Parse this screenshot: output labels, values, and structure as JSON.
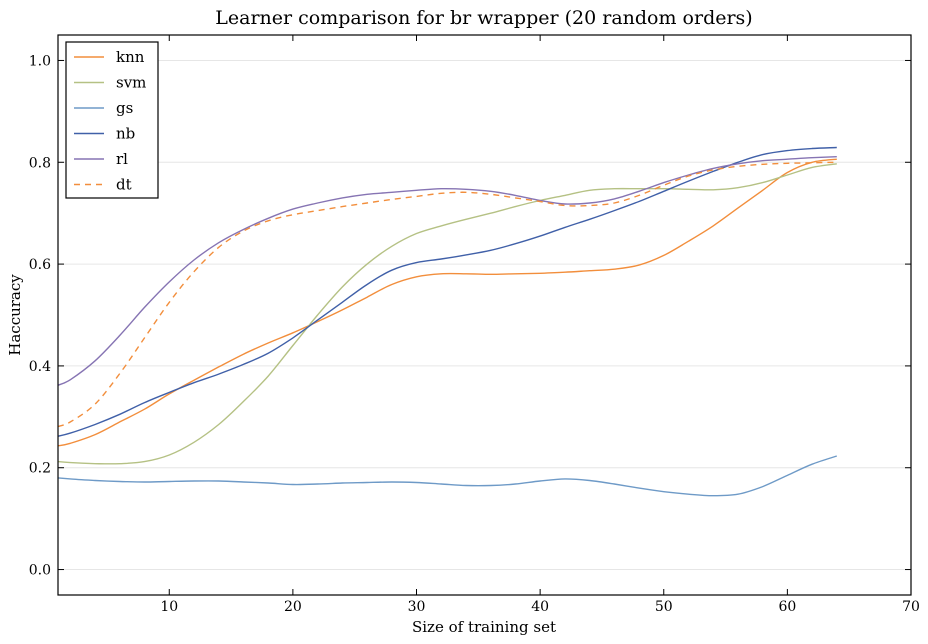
{
  "chart_data": {
    "type": "line",
    "title": "Learner comparison for br wrapper (20 random orders)",
    "xlabel": "Size of training set",
    "ylabel": "Haccuracy",
    "xlim": [
      1,
      70
    ],
    "ylim": [
      -0.05,
      1.05
    ],
    "xticks": [
      10,
      20,
      30,
      40,
      50,
      60,
      70
    ],
    "yticks": [
      0.0,
      0.2,
      0.4,
      0.6,
      0.8,
      1.0
    ],
    "grid": "horizontal",
    "legend_position": "top-left",
    "x": [
      1,
      2,
      4,
      6,
      8,
      10,
      12,
      14,
      16,
      18,
      20,
      22,
      24,
      26,
      28,
      30,
      32,
      34,
      36,
      38,
      40,
      42,
      44,
      46,
      48,
      50,
      52,
      54,
      56,
      58,
      60,
      62,
      64
    ],
    "series": [
      {
        "name": "knn",
        "color": "#f28e3c",
        "dash": "solid",
        "values": [
          0.243,
          0.248,
          0.265,
          0.29,
          0.315,
          0.345,
          0.372,
          0.398,
          0.423,
          0.445,
          0.465,
          0.487,
          0.51,
          0.535,
          0.56,
          0.575,
          0.581,
          0.581,
          0.58,
          0.581,
          0.582,
          0.584,
          0.587,
          0.59,
          0.598,
          0.617,
          0.645,
          0.675,
          0.71,
          0.745,
          0.78,
          0.8,
          0.806
        ]
      },
      {
        "name": "svm",
        "color": "#b5c184",
        "dash": "solid",
        "values": [
          0.212,
          0.21,
          0.208,
          0.208,
          0.212,
          0.225,
          0.25,
          0.285,
          0.33,
          0.38,
          0.44,
          0.5,
          0.555,
          0.6,
          0.635,
          0.66,
          0.675,
          0.688,
          0.7,
          0.713,
          0.725,
          0.735,
          0.745,
          0.748,
          0.748,
          0.748,
          0.747,
          0.746,
          0.75,
          0.76,
          0.775,
          0.79,
          0.797
        ]
      },
      {
        "name": "gs",
        "color": "#6e9ac7",
        "dash": "solid",
        "values": [
          0.18,
          0.178,
          0.175,
          0.173,
          0.172,
          0.173,
          0.174,
          0.174,
          0.172,
          0.17,
          0.167,
          0.168,
          0.17,
          0.171,
          0.172,
          0.171,
          0.168,
          0.165,
          0.165,
          0.168,
          0.174,
          0.178,
          0.175,
          0.168,
          0.16,
          0.153,
          0.148,
          0.145,
          0.148,
          0.163,
          0.185,
          0.207,
          0.223
        ]
      },
      {
        "name": "nb",
        "color": "#4060a8",
        "dash": "solid",
        "values": [
          0.262,
          0.268,
          0.285,
          0.305,
          0.328,
          0.348,
          0.367,
          0.384,
          0.403,
          0.425,
          0.455,
          0.49,
          0.525,
          0.56,
          0.588,
          0.603,
          0.61,
          0.618,
          0.627,
          0.64,
          0.655,
          0.672,
          0.688,
          0.705,
          0.723,
          0.743,
          0.763,
          0.782,
          0.8,
          0.815,
          0.823,
          0.827,
          0.829
        ]
      },
      {
        "name": "rl",
        "color": "#8674b3",
        "dash": "solid",
        "values": [
          0.362,
          0.373,
          0.41,
          0.46,
          0.515,
          0.565,
          0.608,
          0.642,
          0.668,
          0.69,
          0.708,
          0.72,
          0.73,
          0.737,
          0.741,
          0.745,
          0.748,
          0.747,
          0.743,
          0.735,
          0.725,
          0.718,
          0.72,
          0.728,
          0.743,
          0.76,
          0.775,
          0.788,
          0.797,
          0.803,
          0.806,
          0.809,
          0.811
        ]
      },
      {
        "name": "dt",
        "color": "#f28e3c",
        "dash": "dashed",
        "values": [
          0.281,
          0.29,
          0.325,
          0.385,
          0.455,
          0.525,
          0.585,
          0.633,
          0.665,
          0.685,
          0.697,
          0.705,
          0.713,
          0.72,
          0.727,
          0.733,
          0.739,
          0.741,
          0.737,
          0.73,
          0.723,
          0.715,
          0.715,
          0.72,
          0.735,
          0.755,
          0.773,
          0.785,
          0.792,
          0.796,
          0.798,
          0.799,
          0.8
        ]
      }
    ]
  }
}
